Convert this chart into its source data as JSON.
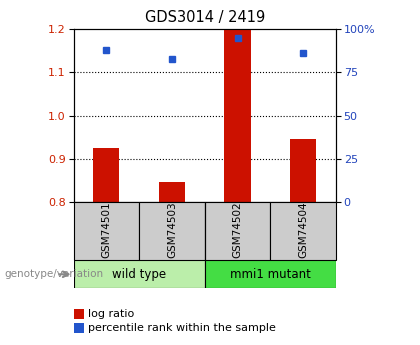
{
  "title": "GDS3014 / 2419",
  "samples": [
    "GSM74501",
    "GSM74503",
    "GSM74502",
    "GSM74504"
  ],
  "log_ratios": [
    0.925,
    0.845,
    1.2,
    0.945
  ],
  "percentile_ranks": [
    88,
    83,
    95,
    86
  ],
  "groups": [
    {
      "label": "wild type",
      "samples": [
        0,
        1
      ],
      "color": "#bbeeaa"
    },
    {
      "label": "mmi1 mutant",
      "samples": [
        2,
        3
      ],
      "color": "#44dd44"
    }
  ],
  "ylim_left": [
    0.8,
    1.2
  ],
  "ylim_right": [
    0,
    100
  ],
  "yticks_left": [
    0.8,
    0.9,
    1.0,
    1.1,
    1.2
  ],
  "yticks_right": [
    0,
    25,
    50,
    75,
    100
  ],
  "yticklabels_right": [
    "0",
    "25",
    "50",
    "75",
    "100%"
  ],
  "hlines": [
    0.9,
    1.0,
    1.1
  ],
  "bar_color": "#cc1100",
  "dot_color": "#2255cc",
  "bar_width": 0.4,
  "left_tick_color": "#cc2200",
  "right_tick_color": "#2244bb",
  "legend_log_ratio": "log ratio",
  "legend_percentile": "percentile rank within the sample",
  "genotype_label": "genotype/variation",
  "sample_box_color": "#cccccc",
  "tick_fontsize": 8,
  "title_fontsize": 10.5,
  "sample_fontsize": 7.5,
  "group_fontsize": 8.5,
  "legend_fontsize": 8
}
